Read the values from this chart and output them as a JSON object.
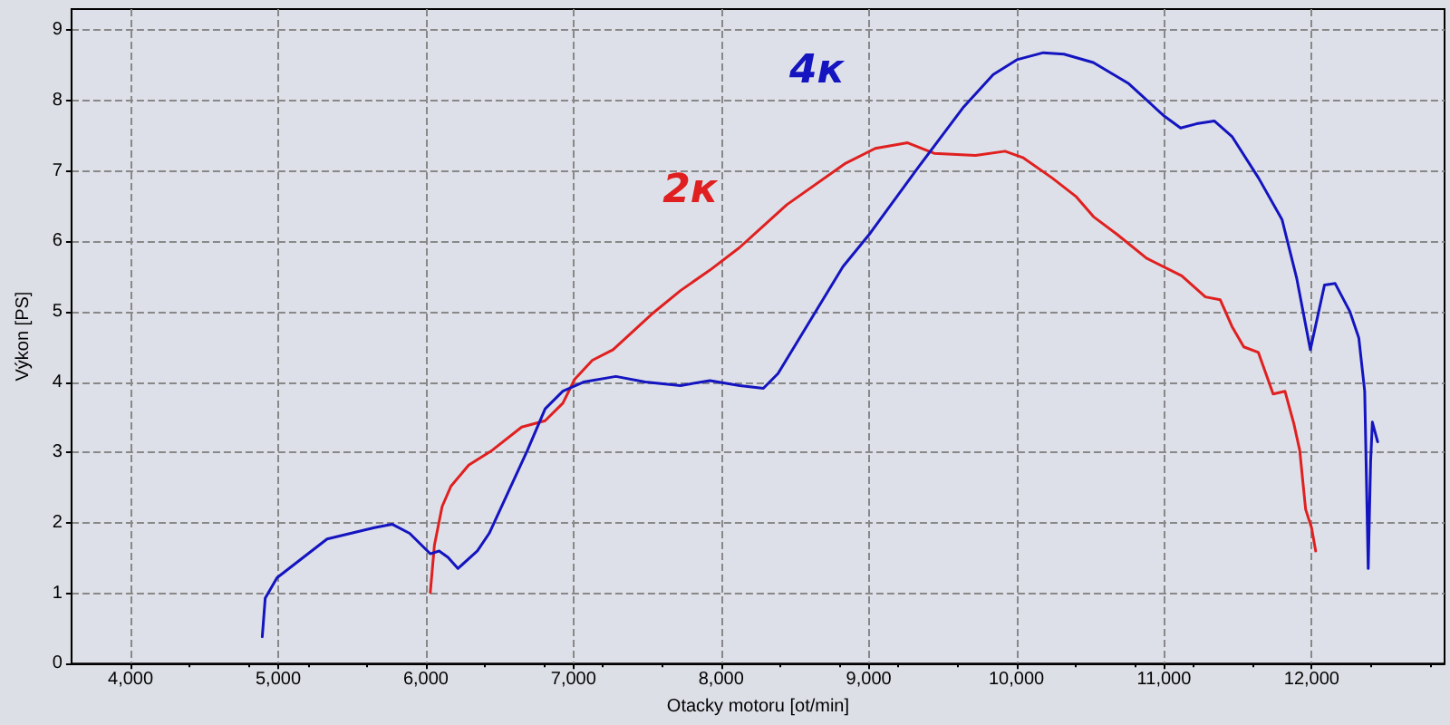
{
  "chart_data": {
    "type": "line",
    "xlabel": "Otacky motoru [ot/min]",
    "ylabel": "Výkon [PS]",
    "xlim": [
      3600,
      12900
    ],
    "ylim": [
      0,
      9.3
    ],
    "xticks": [
      {
        "value": 4000,
        "label": "4,000"
      },
      {
        "value": 5000,
        "label": "5,000"
      },
      {
        "value": 6000,
        "label": "6,000"
      },
      {
        "value": 7000,
        "label": "7,000"
      },
      {
        "value": 8000,
        "label": "8,000"
      },
      {
        "value": 9000,
        "label": "9,000"
      },
      {
        "value": 10000,
        "label": "10,000"
      },
      {
        "value": 11000,
        "label": "11,000"
      },
      {
        "value": 12000,
        "label": "12,000"
      }
    ],
    "yticks": [
      0,
      1,
      2,
      3,
      4,
      5,
      6,
      7,
      8,
      9
    ],
    "grid": true,
    "legend": false,
    "marker": "none",
    "line_style": "solid",
    "series": [
      {
        "name": "2к",
        "color": "#e02020",
        "x": [
          6030,
          6058,
          6110,
          6170,
          6290,
          6449,
          6649,
          6808,
          6928,
          7008,
          7128,
          7268,
          7527,
          7725,
          7924,
          8124,
          8445,
          8844,
          9044,
          9263,
          9443,
          9723,
          9923,
          10043,
          10242,
          10402,
          10522,
          10681,
          10881,
          11120,
          11280,
          11380,
          11460,
          11540,
          11639,
          11739,
          11819,
          11879,
          11919,
          11959,
          11999,
          12027
        ],
        "values": [
          1.01,
          1.68,
          2.23,
          2.52,
          2.82,
          3.03,
          3.36,
          3.45,
          3.7,
          4.04,
          4.31,
          4.46,
          4.96,
          5.3,
          5.59,
          5.91,
          6.52,
          7.11,
          7.32,
          7.4,
          7.25,
          7.22,
          7.28,
          7.19,
          6.9,
          6.64,
          6.35,
          6.1,
          5.76,
          5.51,
          5.21,
          5.17,
          4.79,
          4.5,
          4.42,
          3.83,
          3.87,
          3.41,
          3.03,
          2.19,
          1.93,
          1.6
        ]
      },
      {
        "name": "4к",
        "color": "#1414c0",
        "x": [
          4892,
          4912,
          4992,
          5331,
          5651,
          5771,
          5890,
          6030,
          6090,
          6150,
          6217,
          6349,
          6429,
          6688,
          6808,
          6928,
          7068,
          7287,
          7486,
          7725,
          7924,
          8126,
          8286,
          8385,
          8605,
          8825,
          9004,
          9324,
          9643,
          9843,
          10003,
          10182,
          10322,
          10521,
          10761,
          11001,
          11112,
          11220,
          11340,
          11460,
          11640,
          11799,
          11899,
          11991,
          12087,
          12159,
          12259,
          12319,
          12359,
          12383,
          12399,
          12411,
          12447
        ],
        "values": [
          0.38,
          0.93,
          1.22,
          1.77,
          1.93,
          1.98,
          1.85,
          1.56,
          1.6,
          1.51,
          1.35,
          1.6,
          1.85,
          3.03,
          3.62,
          3.87,
          4.0,
          4.08,
          4.0,
          3.95,
          4.02,
          3.95,
          3.91,
          4.12,
          4.88,
          5.64,
          6.1,
          7.02,
          7.91,
          8.37,
          8.58,
          8.68,
          8.66,
          8.54,
          8.24,
          7.78,
          7.61,
          7.67,
          7.71,
          7.49,
          6.9,
          6.31,
          5.47,
          4.46,
          5.38,
          5.4,
          5.0,
          4.63,
          3.87,
          1.35,
          2.86,
          3.43,
          3.15
        ]
      }
    ]
  }
}
